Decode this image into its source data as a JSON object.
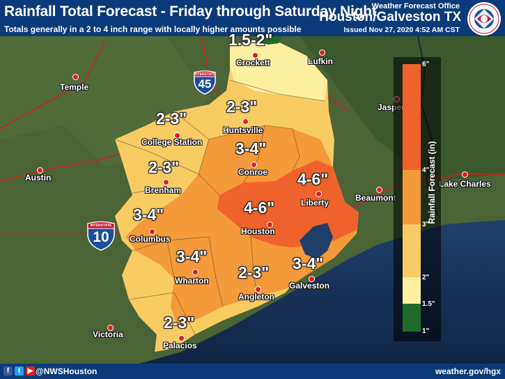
{
  "header": {
    "title": "Rainfall Total Forecast - Friday through Saturday Night",
    "subtitle": "Totals generally in a 2 to 4 inch range with locally higher amounts possible",
    "office_line": "Weather Forecast Office",
    "office_name": "Houston/Galveston TX",
    "issued": "Issued Nov 27, 2020 4:52 AM CST",
    "logo_text": "NATIONAL WEATHER SERVICE"
  },
  "rainfall_labels": {
    "north": "1.5-2\"",
    "huntsville": "2-3\"",
    "college_station": "2-3\"",
    "brenham": "2-3\"",
    "conroe": "3-4\"",
    "liberty": "4-6\"",
    "houston": "4-6\"",
    "columbus": "3-4\"",
    "wharton": "3-4\"",
    "angleton": "2-3\"",
    "galveston": "3-4\"",
    "palacios": "2-3\""
  },
  "cities": {
    "crockett": "Crockett",
    "lufkin": "Lufkin",
    "temple": "Temple",
    "jasper": "Jasper",
    "huntsville": "Huntsville",
    "college_station": "College Station",
    "austin": "Austin",
    "conroe": "Conroe",
    "brenham": "Brenham",
    "liberty": "Liberty",
    "beaumont": "Beaumont",
    "lake_charles": "Lake Charles",
    "houston": "Houston",
    "columbus": "Columbus",
    "wharton": "Wharton",
    "galveston": "Galveston",
    "angleton": "Angleton",
    "victoria": "Victoria",
    "palacios": "Palacios"
  },
  "highways": {
    "i45": {
      "top": "INTERSTATE",
      "number": "45"
    },
    "i10": {
      "top": "INTERSTATE",
      "number": "10"
    }
  },
  "legend": {
    "title": "Rainfall Forecast (in)",
    "ticks": [
      "6\"",
      "4\"",
      "3\"",
      "2\"",
      "1.5\"",
      "1\""
    ],
    "colors": {
      "4-6": "#f0622c",
      "3-4": "#f59a3a",
      "2-3": "#f9cc63",
      "1.5-2": "#fdf0a0",
      "1-1.5": "#1f6b2a"
    }
  },
  "footer": {
    "handle": "@NWSHouston",
    "website": "weather.gov/hgx",
    "social": [
      "facebook-icon",
      "twitter-icon",
      "youtube-icon"
    ]
  }
}
